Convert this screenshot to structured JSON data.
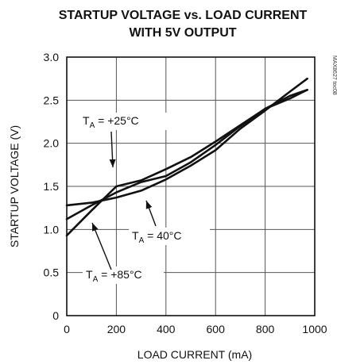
{
  "chart_data": {
    "type": "line",
    "title": "STARTUP VOLTAGE vs. LOAD CURRENT",
    "subtitle": "WITH 5V OUTPUT",
    "xlabel": "LOAD CURRENT (mA)",
    "ylabel": "STARTUP VOLTAGE (V)",
    "xlim": [
      0,
      1000
    ],
    "ylim": [
      0,
      3.0
    ],
    "x_ticks": [
      "0",
      "200",
      "400",
      "600",
      "800",
      "1000"
    ],
    "y_ticks": [
      "0",
      "0.5",
      "1.0",
      "1.5",
      "2.0",
      "2.5",
      "3.0"
    ],
    "grid": true,
    "figure_code": "MAX8627 toc08",
    "series": [
      {
        "label_prefix": "T",
        "label_sub": "A",
        "label_suffix": " = +25°C",
        "x": [
          0,
          100,
          200,
          300,
          400,
          500,
          600,
          700,
          800,
          900,
          970
        ],
        "y": [
          1.12,
          1.28,
          1.43,
          1.55,
          1.62,
          1.78,
          1.98,
          2.2,
          2.4,
          2.55,
          2.62
        ]
      },
      {
        "label_prefix": "T",
        "label_sub": "A",
        "label_suffix": " = 40°C",
        "x": [
          0,
          100,
          200,
          300,
          400,
          500,
          600,
          700,
          800,
          900,
          970
        ],
        "y": [
          1.28,
          1.31,
          1.37,
          1.45,
          1.58,
          1.74,
          1.92,
          2.17,
          2.38,
          2.6,
          2.75
        ]
      },
      {
        "label_prefix": "T",
        "label_sub": "A",
        "label_suffix": " = +85°C",
        "x": [
          0,
          100,
          200,
          300,
          400,
          500,
          600,
          700,
          800,
          900,
          970
        ],
        "y": [
          0.93,
          1.22,
          1.5,
          1.57,
          1.7,
          1.84,
          2.02,
          2.21,
          2.4,
          2.52,
          2.62
        ]
      }
    ]
  }
}
